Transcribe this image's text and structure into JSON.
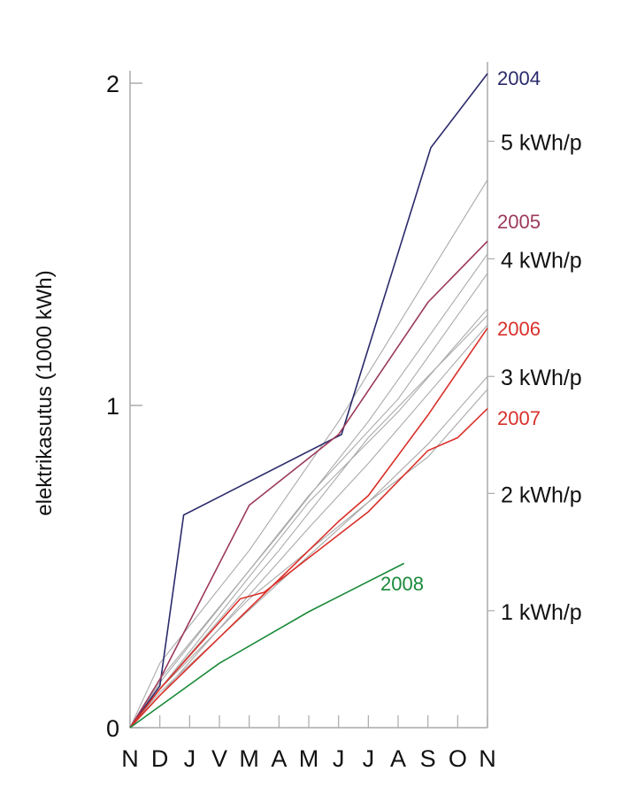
{
  "chart_data": {
    "type": "line",
    "title": "",
    "xlabel": "",
    "ylabel": "elektrikasutus (1000 kWh)",
    "categories": [
      "N",
      "D",
      "J",
      "V",
      "M",
      "A",
      "M",
      "J",
      "J",
      "A",
      "S",
      "O",
      "N"
    ],
    "ylim": [
      0,
      2
    ],
    "yticks": [
      {
        "v": 0,
        "label": "0"
      },
      {
        "v": 1,
        "label": "1"
      },
      {
        "v": 2,
        "label": "2"
      }
    ],
    "right_axis": [
      {
        "v": 1.82,
        "label": "5 kWh/p"
      },
      {
        "v": 1.455,
        "label": "4 kWh/p"
      },
      {
        "v": 1.09,
        "label": "3 kWh/p"
      },
      {
        "v": 0.727,
        "label": "2 kWh/p"
      },
      {
        "v": 0.363,
        "label": "1 kWh/p"
      }
    ],
    "grid": false,
    "series": [
      {
        "name": "gray-a",
        "label": "",
        "color": "#aaaaaa",
        "points": [
          [
            0,
            0
          ],
          [
            1,
            0.2
          ],
          [
            4,
            0.55
          ],
          [
            7,
            0.95
          ],
          [
            12,
            1.7
          ]
        ]
      },
      {
        "name": "gray-b",
        "label": "",
        "color": "#aaaaaa",
        "points": [
          [
            0,
            0
          ],
          [
            1,
            0.15
          ],
          [
            5,
            0.6
          ],
          [
            8,
            0.95
          ],
          [
            12,
            1.47
          ]
        ]
      },
      {
        "name": "gray-c",
        "label": "",
        "color": "#aaaaaa",
        "points": [
          [
            0,
            0
          ],
          [
            1,
            0.14
          ],
          [
            6,
            0.72
          ],
          [
            9,
            1.02
          ],
          [
            12,
            1.41
          ]
        ]
      },
      {
        "name": "gray-d",
        "label": "",
        "color": "#aaaaaa",
        "points": [
          [
            0,
            0
          ],
          [
            1,
            0.12
          ],
          [
            6,
            0.7
          ],
          [
            9,
            0.98
          ],
          [
            12,
            1.3
          ]
        ]
      },
      {
        "name": "gray-e",
        "label": "",
        "color": "#aaaaaa",
        "points": [
          [
            0,
            0
          ],
          [
            1,
            0.12
          ],
          [
            5,
            0.55
          ],
          [
            8,
            0.9
          ],
          [
            12,
            1.28
          ]
        ]
      },
      {
        "name": "gray-f",
        "label": "",
        "color": "#aaaaaa",
        "points": [
          [
            0,
            0
          ],
          [
            1,
            0.1
          ],
          [
            6,
            0.62
          ],
          [
            8,
            0.82
          ],
          [
            12,
            1.25
          ]
        ]
      },
      {
        "name": "gray-g",
        "label": "",
        "color": "#aaaaaa",
        "points": [
          [
            0,
            0
          ],
          [
            1,
            0.12
          ],
          [
            4,
            0.4
          ],
          [
            8,
            0.7
          ],
          [
            10,
            0.88
          ],
          [
            12,
            1.09
          ]
        ]
      },
      {
        "name": "gray-h",
        "label": "",
        "color": "#aaaaaa",
        "points": [
          [
            0,
            0
          ],
          [
            1,
            0.11
          ],
          [
            5,
            0.45
          ],
          [
            8,
            0.7
          ],
          [
            10,
            0.84
          ],
          [
            12,
            1.05
          ]
        ]
      },
      {
        "name": "2004",
        "label": "2004",
        "color": "#2b2a6b",
        "points": [
          [
            0,
            0
          ],
          [
            1,
            0.13
          ],
          [
            1.8,
            0.66
          ],
          [
            7.1,
            0.91
          ],
          [
            10.1,
            1.8
          ],
          [
            12,
            2.03
          ]
        ]
      },
      {
        "name": "2005",
        "label": "2005",
        "color": "#9b3a5a",
        "points": [
          [
            0,
            0
          ],
          [
            1,
            0.15
          ],
          [
            4,
            0.69
          ],
          [
            7,
            0.91
          ],
          [
            10,
            1.32
          ],
          [
            12,
            1.51
          ]
        ]
      },
      {
        "name": "2006",
        "label": "2006",
        "color": "#d9302a",
        "points": [
          [
            0,
            0
          ],
          [
            1,
            0.1
          ],
          [
            7,
            0.64
          ],
          [
            8,
            0.72
          ],
          [
            10,
            0.97
          ],
          [
            12,
            1.24
          ]
        ]
      },
      {
        "name": "2007",
        "label": "2007",
        "color": "#d9302a",
        "points": [
          [
            0,
            0
          ],
          [
            1,
            0.12
          ],
          [
            3.7,
            0.4
          ],
          [
            4.5,
            0.42
          ],
          [
            8,
            0.67
          ],
          [
            10,
            0.86
          ],
          [
            11,
            0.9
          ],
          [
            12,
            0.99
          ]
        ]
      },
      {
        "name": "2008",
        "label": "2008",
        "color": "#1a8a3a",
        "points": [
          [
            0,
            0
          ],
          [
            0.6,
            0.04
          ],
          [
            3,
            0.2
          ],
          [
            6,
            0.36
          ],
          [
            9.2,
            0.51
          ]
        ]
      }
    ]
  }
}
